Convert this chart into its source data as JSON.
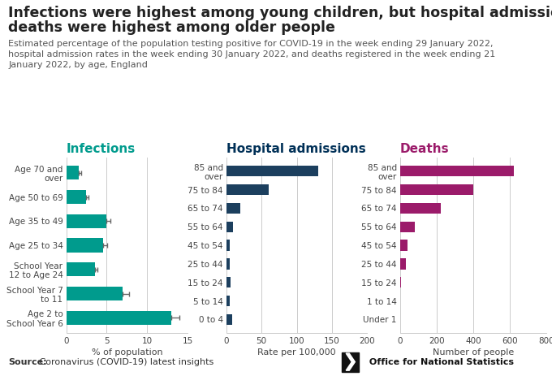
{
  "title_line1": "Infections were highest among young children, but hospital admissions and",
  "title_line2": "deaths were highest among older people",
  "subtitle": "Estimated percentage of the population testing positive for COVID-19 in the week ending 29 January 2022,\nhospital admission rates in the week ending 30 January 2022, and deaths registered in the week ending 21\nJanuary 2022, by age, England",
  "source_bold": "Source:",
  "source_rest": " Coronavirus (COVID-19) latest insights",
  "ons_text": " Office for National Statistics",
  "infections": {
    "title": "Infections",
    "color": "#009B8D",
    "categories": [
      "Age 70 and\nover",
      "Age 50 to 69",
      "Age 35 to 49",
      "Age 25 to 34",
      "School Year\n12 to Age 24",
      "School Year 7\nto 11",
      "Age 2 to\nSchool Year 6"
    ],
    "values": [
      1.5,
      2.4,
      5.0,
      4.6,
      3.5,
      7.0,
      13.0
    ],
    "errors": [
      0.3,
      0.3,
      0.5,
      0.5,
      0.4,
      0.8,
      1.0
    ],
    "xlabel": "% of population",
    "xlim": [
      0,
      15
    ],
    "xticks": [
      0,
      5,
      10,
      15
    ]
  },
  "hospital": {
    "title": "Hospital admissions",
    "title_color": "#003057",
    "color": "#1C3F5E",
    "categories": [
      "85 and\nover",
      "75 to 84",
      "65 to 74",
      "55 to 64",
      "45 to 54",
      "25 to 44",
      "15 to 24",
      "5 to 14",
      "0 to 4"
    ],
    "values": [
      130,
      60,
      20,
      10,
      5,
      5,
      6,
      5,
      8
    ],
    "xlabel": "Rate per 100,000",
    "xlim": [
      0,
      200
    ],
    "xticks": [
      0,
      50,
      100,
      150,
      200
    ]
  },
  "deaths": {
    "title": "Deaths",
    "color": "#9B1B6A",
    "categories": [
      "85 and\nover",
      "75 to 84",
      "65 to 74",
      "55 to 64",
      "45 to 54",
      "25 to 44",
      "15 to 24",
      "1 to 14",
      "Under 1"
    ],
    "values": [
      620,
      400,
      220,
      80,
      40,
      30,
      5,
      2,
      1
    ],
    "xlabel": "Number of people",
    "xlim": [
      0,
      800
    ],
    "xticks": [
      0,
      200,
      400,
      600,
      800
    ]
  },
  "bg_color": "#ffffff",
  "title_fontsize": 12.5,
  "subtitle_fontsize": 8.0,
  "axis_title_fontsize": 11,
  "tick_fontsize": 7.5,
  "xlabel_fontsize": 8.0,
  "source_fontsize": 8.0
}
